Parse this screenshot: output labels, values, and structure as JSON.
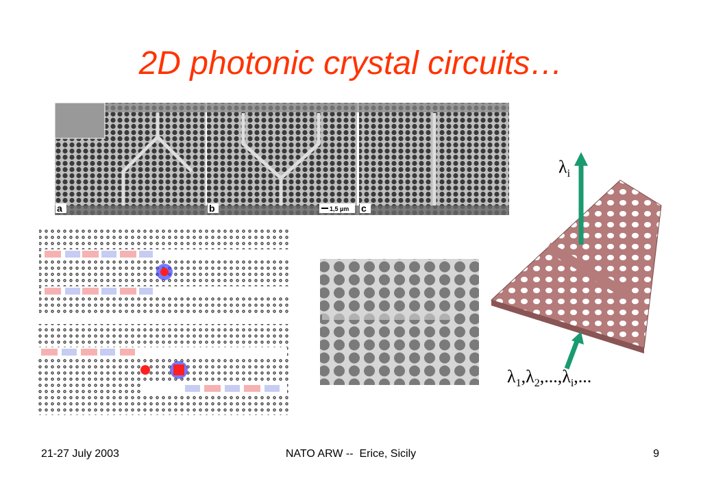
{
  "header": {
    "title": "2D photonic crystal circuits…"
  },
  "sem_panels": {
    "labels": [
      "a",
      "b",
      "c"
    ],
    "scale_bar": "1,5 µm"
  },
  "device": {
    "output_label": {
      "symbol": "λ",
      "sub": "i"
    },
    "input_label": [
      {
        "symbol": "λ",
        "sub": "1"
      },
      {
        "symbol": ",λ",
        "sub": "2"
      },
      {
        "symbol": ",...,λ",
        "sub": "i"
      },
      {
        "symbol": ",...",
        "sub": null
      }
    ]
  },
  "footer": {
    "date": "21-27 July 2003",
    "event": "NATO ARW --  Erice, Sicily",
    "page": "9"
  }
}
